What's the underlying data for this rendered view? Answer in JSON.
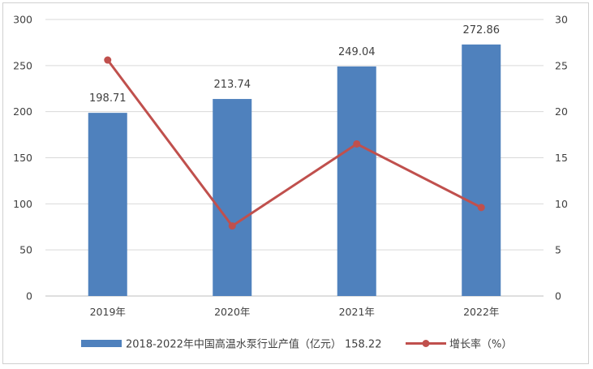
{
  "chart_data": {
    "type": "bar",
    "categories": [
      "2019年",
      "2020年",
      "2021年",
      "2022年"
    ],
    "series": [
      {
        "name": "2018-2022年中国高温水泵行业产值（亿元） 158.22",
        "type": "bar",
        "axis": "left",
        "values": [
          198.71,
          213.74,
          249.04,
          272.86
        ],
        "data_labels": [
          "198.71",
          "213.74",
          "249.04",
          "272.86"
        ],
        "color": "#4f81bd"
      },
      {
        "name": "增长率（%）",
        "type": "line",
        "axis": "right",
        "values": [
          25.6,
          7.6,
          16.5,
          9.6
        ],
        "color": "#c0504d"
      }
    ],
    "y_left": {
      "ylim": [
        0,
        300
      ],
      "ticks": [
        "0",
        "50",
        "100",
        "150",
        "200",
        "250",
        "300"
      ]
    },
    "y_right": {
      "ylim": [
        0,
        30
      ],
      "ticks": [
        "0",
        "5",
        "10",
        "15",
        "20",
        "25",
        "30"
      ]
    },
    "grid": true,
    "legend_position": "bottom"
  }
}
